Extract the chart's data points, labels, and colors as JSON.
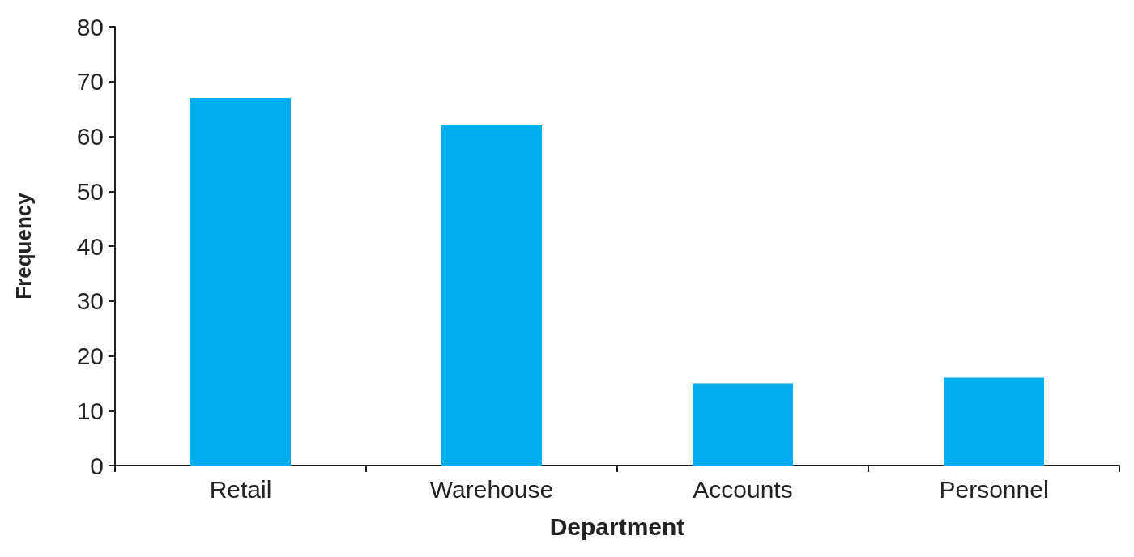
{
  "chart_data": {
    "type": "bar",
    "xlabel": "Department",
    "ylabel": "Frequency",
    "categories": [
      "Retail",
      "Warehouse",
      "Accounts",
      "Personnel"
    ],
    "values": [
      67,
      62,
      15,
      16
    ],
    "color": "#00aeef",
    "ylim": [
      0,
      80
    ],
    "yticks": [
      0,
      10,
      20,
      30,
      40,
      50,
      60,
      70,
      80
    ],
    "grid": false
  }
}
